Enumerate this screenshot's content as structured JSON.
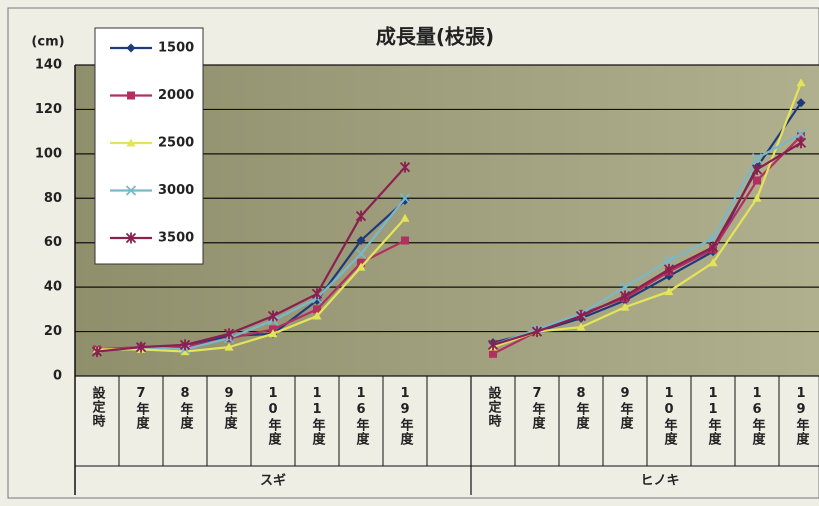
{
  "chart_data": {
    "type": "line",
    "title": "成長量(枝張)",
    "y_label": "(cm)",
    "categories": [
      "設定時",
      "7年度",
      "8年度",
      "9年度",
      "10年度",
      "11年度",
      "16年度",
      "19年度",
      null,
      "設定時",
      "7年度",
      "8年度",
      "9年度",
      "10年度",
      "11年度",
      "16年度",
      "19年度"
    ],
    "group_labels": [
      "スギ",
      "ヒノキ"
    ],
    "ylim": [
      0,
      140
    ],
    "yticks": [
      0,
      20,
      40,
      60,
      80,
      100,
      120,
      140
    ],
    "grid": true,
    "series": [
      {
        "name": "1500",
        "color": "#1f3a7a",
        "marker": "diamond",
        "values": [
          11,
          13,
          13,
          18,
          19,
          34,
          61,
          79,
          null,
          15,
          20,
          26,
          34,
          45,
          56,
          94,
          123
        ]
      },
      {
        "name": "2000",
        "color": "#b03060",
        "marker": "square",
        "values": [
          12,
          13,
          13,
          17,
          21,
          30,
          51,
          61,
          null,
          10,
          20,
          28,
          35,
          47,
          57,
          88,
          108
        ]
      },
      {
        "name": "2500",
        "color": "#e4e45a",
        "marker": "triangle",
        "values": [
          12,
          12,
          11,
          13,
          19,
          27,
          49,
          71,
          null,
          13,
          20,
          22,
          31,
          38,
          51,
          80,
          132
        ]
      },
      {
        "name": "3000",
        "color": "#7ab8c8",
        "marker": "x",
        "values": [
          11,
          13,
          12,
          17,
          25,
          35,
          55,
          80,
          null,
          14,
          21,
          28,
          40,
          52,
          62,
          98,
          109
        ]
      },
      {
        "name": "3500",
        "color": "#8a2050",
        "marker": "star",
        "values": [
          11,
          13,
          14,
          19,
          27,
          37,
          72,
          94,
          null,
          14,
          20,
          27,
          36,
          48,
          58,
          93,
          105
        ]
      }
    ]
  }
}
